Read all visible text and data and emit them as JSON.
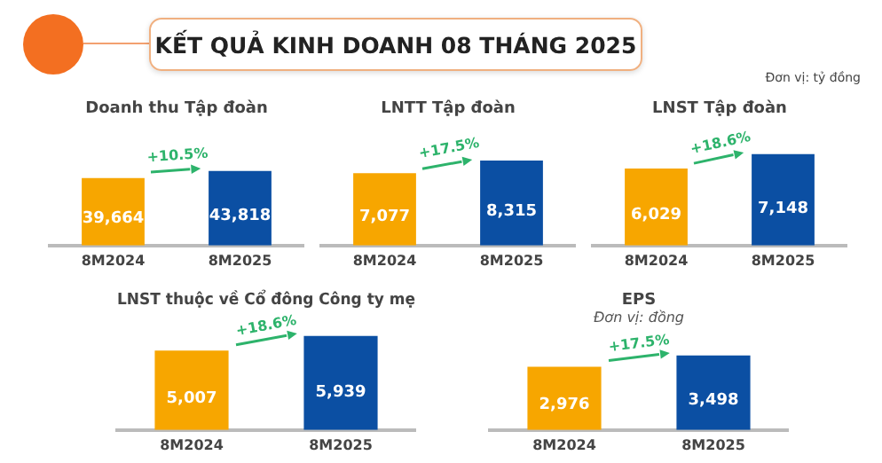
{
  "chart_data": [
    {
      "type": "other",
      "title": "KẾT QUẢ KINH DOANH 08 THÁNG 2025",
      "annotations": [
        "Đơn vị: tỷ đồng"
      ]
    },
    {
      "type": "bar",
      "title": "Doanh thu Tập đoàn",
      "categories": [
        "8M2024",
        "8M2025"
      ],
      "values": [
        39664,
        43818
      ],
      "value_labels": [
        "39,664",
        "43,818"
      ],
      "colors": [
        "#f7a600",
        "#0b4fa3"
      ],
      "annotations": [
        "+10.5%"
      ],
      "legend": false,
      "grid": false
    },
    {
      "type": "bar",
      "title": "LNTT Tập đoàn",
      "categories": [
        "8M2024",
        "8M2025"
      ],
      "values": [
        7077,
        8315
      ],
      "value_labels": [
        "7,077",
        "8,315"
      ],
      "colors": [
        "#f7a600",
        "#0b4fa3"
      ],
      "annotations": [
        "+17.5%"
      ],
      "legend": false,
      "grid": false
    },
    {
      "type": "bar",
      "title": "LNST Tập đoàn",
      "categories": [
        "8M2024",
        "8M2025"
      ],
      "values": [
        6029,
        7148
      ],
      "value_labels": [
        "6,029",
        "7,148"
      ],
      "colors": [
        "#f7a600",
        "#0b4fa3"
      ],
      "annotations": [
        "+18.6%"
      ],
      "legend": false,
      "grid": false
    },
    {
      "type": "bar",
      "title": "LNST thuộc về Cổ đông Công ty mẹ",
      "categories": [
        "8M2024",
        "8M2025"
      ],
      "values": [
        5007,
        5939
      ],
      "value_labels": [
        "5,007",
        "5,939"
      ],
      "colors": [
        "#f7a600",
        "#0b4fa3"
      ],
      "annotations": [
        "+18.6%"
      ],
      "legend": false,
      "grid": false
    },
    {
      "type": "bar",
      "title": "EPS",
      "subtitle": "Đơn vị: đồng",
      "categories": [
        "8M2024",
        "8M2025"
      ],
      "values": [
        2976,
        3498
      ],
      "value_labels": [
        "2,976",
        "3,498"
      ],
      "colors": [
        "#f7a600",
        "#0b4fa3"
      ],
      "annotations": [
        "+17.5%"
      ],
      "legend": false,
      "grid": false
    }
  ]
}
